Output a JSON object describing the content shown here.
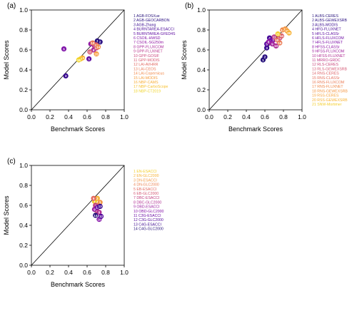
{
  "chart_data": [
    {
      "type": "scatter",
      "panel_label": "(a)",
      "xlabel": "Benchmark Scores",
      "ylabel": "Model Scores",
      "xlim": [
        0,
        1
      ],
      "ylim": [
        0,
        1
      ],
      "xticks": [
        "0.0",
        "0.2",
        "0.4",
        "0.6",
        "0.8",
        "1.0"
      ],
      "yticks": [
        "0.0",
        "0.2",
        "0.4",
        "0.6",
        "0.8",
        "1.0"
      ],
      "identity_line": true,
      "legend_placement": "right",
      "legend": [
        {
          "label": "1 AGB-FOSXue",
          "color": "#25107a"
        },
        {
          "label": "2 AGB-GEOCARBON",
          "color": "#2a0f82"
        },
        {
          "label": "3 AGB-Zhang",
          "color": "#37098f"
        },
        {
          "label": "4 BURNTAREA-ESACCI",
          "color": "#4b0a9a"
        },
        {
          "label": "5 BURNTAREA-GFED4S",
          "color": "#5c0aa0"
        },
        {
          "label": "6 CSOIL-HWSD",
          "color": "#7e10a8"
        },
        {
          "label": "7 CSOIL-SG250m",
          "color": "#9318a4"
        },
        {
          "label": "8 GPP-FLUXCOM",
          "color": "#a8289a"
        },
        {
          "label": "9 GPP-FLUXNET",
          "color": "#bb378c"
        },
        {
          "label": "10 GPP-GOSIF",
          "color": "#cb4a7f"
        },
        {
          "label": "11 GPP-MODIS",
          "color": "#d75a72"
        },
        {
          "label": "12 LAI-AVHRR",
          "color": "#e26a63"
        },
        {
          "label": "13 LAI-CEOS",
          "color": "#ea7957"
        },
        {
          "label": "14 LAI-Copernicus",
          "color": "#f1894b"
        },
        {
          "label": "15 LAI-MODIS",
          "color": "#f69c3e"
        },
        {
          "label": "16 NBP-CAMS",
          "color": "#f8ae35"
        },
        {
          "label": "17 NBP-CarboScope",
          "color": "#f7c02f"
        },
        {
          "label": "18 NBP-CT2019",
          "color": "#f0d52a"
        }
      ],
      "points": [
        {
          "n": "1",
          "x": 0.71,
          "y": 0.69,
          "color": "#25107a"
        },
        {
          "n": "2",
          "x": 0.74,
          "y": 0.68,
          "color": "#2a0f82"
        },
        {
          "n": "3",
          "x": 0.37,
          "y": 0.34,
          "color": "#37098f"
        },
        {
          "n": "4",
          "x": 0.68,
          "y": 0.66,
          "color": "#4b0a9a"
        },
        {
          "n": "5",
          "x": 0.62,
          "y": 0.51,
          "color": "#5c0aa0"
        },
        {
          "n": "6",
          "x": 0.35,
          "y": 0.61,
          "color": "#7e10a8"
        },
        {
          "n": "7",
          "x": 0.64,
          "y": 0.66,
          "color": "#9318a4"
        },
        {
          "n": "8",
          "x": 0.67,
          "y": 0.6,
          "color": "#a8289a"
        },
        {
          "n": "9",
          "x": 0.68,
          "y": 0.64,
          "color": "#bb378c"
        },
        {
          "n": "10",
          "x": 0.7,
          "y": 0.62,
          "color": "#cb4a7f"
        },
        {
          "n": "11",
          "x": 0.63,
          "y": 0.58,
          "color": "#d75a72"
        },
        {
          "n": "12",
          "x": 0.7,
          "y": 0.65,
          "color": "#e26a63"
        },
        {
          "n": "13",
          "x": 0.66,
          "y": 0.67,
          "color": "#ea7957"
        },
        {
          "n": "14",
          "x": 0.72,
          "y": 0.63,
          "color": "#f1894b"
        },
        {
          "n": "15",
          "x": 0.7,
          "y": 0.56,
          "color": "#f69c3e"
        },
        {
          "n": "16",
          "x": 0.55,
          "y": 0.52,
          "color": "#f8ae35"
        },
        {
          "n": "17",
          "x": 0.53,
          "y": 0.51,
          "color": "#f7c02f"
        },
        {
          "n": "18",
          "x": 0.51,
          "y": 0.5,
          "color": "#f0d52a"
        }
      ]
    },
    {
      "type": "scatter",
      "panel_label": "(b)",
      "xlabel": "Benchmark Scores",
      "ylabel": "Model Scores",
      "xlim": [
        0,
        1
      ],
      "ylim": [
        0,
        1
      ],
      "xticks": [
        "0.0",
        "0.2",
        "0.4",
        "0.6",
        "0.8",
        "1.0"
      ],
      "yticks": [
        "0.0",
        "0.2",
        "0.4",
        "0.6",
        "0.8",
        "1.0"
      ],
      "identity_line": true,
      "legend_placement": "right",
      "legend": [
        {
          "label": "1 ALBS-CERES",
          "color": "#25107a"
        },
        {
          "label": "2 ALBS-GEWEXSRB",
          "color": "#2a0f82"
        },
        {
          "label": "3 ALBS-MODIS",
          "color": "#37098f"
        },
        {
          "label": "4 HFG-FLUXNET",
          "color": "#470a97"
        },
        {
          "label": "5 HFLS-CLASSr",
          "color": "#5a0a9f"
        },
        {
          "label": "6 HFLS-FLUXCOM",
          "color": "#6c0ca5"
        },
        {
          "label": "7 HFLS-FLUXNET",
          "color": "#7e10a8"
        },
        {
          "label": "8 HFSS-CLASSr",
          "color": "#8f16a6"
        },
        {
          "label": "9 HFSS-FLUXCOM",
          "color": "#a0229e"
        },
        {
          "label": "10 HFSS-FLUXNET",
          "color": "#b02f93"
        },
        {
          "label": "11 MRRO-GRDC",
          "color": "#be3b88"
        },
        {
          "label": "12 RLS-CERES",
          "color": "#ca497e"
        },
        {
          "label": "13 RLS-GEWEXSRB",
          "color": "#d45774"
        },
        {
          "label": "14 RNS-CERES",
          "color": "#dd6369"
        },
        {
          "label": "15 RNS-CLASSr",
          "color": "#e46f5f"
        },
        {
          "label": "16 RNS-FLUXCOM",
          "color": "#eb7c55"
        },
        {
          "label": "17 RNS-FLUXNET",
          "color": "#f0894b"
        },
        {
          "label": "18 RNS-GEWEXSRB",
          "color": "#f49641"
        },
        {
          "label": "19 RSS-CERES",
          "color": "#f7a33a"
        },
        {
          "label": "20 RSS-GEWEXSRB",
          "color": "#f8b233"
        },
        {
          "label": "21 SNW-Mortimer",
          "color": "#f3cd2c"
        }
      ],
      "points": [
        {
          "n": "1",
          "x": 0.58,
          "y": 0.5,
          "color": "#25107a"
        },
        {
          "n": "2",
          "x": 0.6,
          "y": 0.53,
          "color": "#2a0f82"
        },
        {
          "n": "3",
          "x": 0.62,
          "y": 0.62,
          "color": "#37098f"
        },
        {
          "n": "4",
          "x": 0.65,
          "y": 0.72,
          "color": "#470a97"
        },
        {
          "n": "5",
          "x": 0.62,
          "y": 0.66,
          "color": "#5a0a9f"
        },
        {
          "n": "6",
          "x": 0.66,
          "y": 0.69,
          "color": "#6c0ca5"
        },
        {
          "n": "7",
          "x": 0.69,
          "y": 0.7,
          "color": "#7e10a8"
        },
        {
          "n": "8",
          "x": 0.64,
          "y": 0.68,
          "color": "#8f16a6"
        },
        {
          "n": "9",
          "x": 0.68,
          "y": 0.66,
          "color": "#a0229e"
        },
        {
          "n": "10",
          "x": 0.72,
          "y": 0.64,
          "color": "#b02f93"
        },
        {
          "n": "11",
          "x": 0.7,
          "y": 0.73,
          "color": "#be3b88"
        },
        {
          "n": "12",
          "x": 0.76,
          "y": 0.72,
          "color": "#ca497e"
        },
        {
          "n": "13",
          "x": 0.75,
          "y": 0.75,
          "color": "#d45774"
        },
        {
          "n": "14",
          "x": 0.78,
          "y": 0.74,
          "color": "#dd6369"
        },
        {
          "n": "15",
          "x": 0.73,
          "y": 0.7,
          "color": "#e46f5f"
        },
        {
          "n": "16",
          "x": 0.76,
          "y": 0.67,
          "color": "#eb7c55"
        },
        {
          "n": "17",
          "x": 0.79,
          "y": 0.8,
          "color": "#f0894b"
        },
        {
          "n": "18",
          "x": 0.82,
          "y": 0.81,
          "color": "#f49641"
        },
        {
          "n": "19",
          "x": 0.84,
          "y": 0.79,
          "color": "#f7a33a"
        },
        {
          "n": "20",
          "x": 0.86,
          "y": 0.77,
          "color": "#f8b233"
        },
        {
          "n": "21",
          "x": 0.74,
          "y": 0.76,
          "color": "#f3cd2c"
        }
      ]
    },
    {
      "type": "scatter",
      "panel_label": "(c)",
      "xlabel": "Benchmark Scores",
      "ylabel": "Model Scores",
      "xlim": [
        0,
        1
      ],
      "ylim": [
        0,
        1
      ],
      "xticks": [
        "0.0",
        "0.2",
        "0.4",
        "0.6",
        "0.8",
        "1.0"
      ],
      "yticks": [
        "0.0",
        "0.2",
        "0.4",
        "0.6",
        "0.8",
        "1.0"
      ],
      "identity_line": true,
      "legend_placement": "right",
      "legend": [
        {
          "label": "1 EN-ESACCI",
          "color": "#f3cd2c"
        },
        {
          "label": "2 EN-GLC2000",
          "color": "#f6b136"
        },
        {
          "label": "3 DN-ESACCI",
          "color": "#f29845"
        },
        {
          "label": "4 DN-GLC2000",
          "color": "#ec8150"
        },
        {
          "label": "5 EB-ESACCI",
          "color": "#e3695f"
        },
        {
          "label": "6 EB-GLC2000",
          "color": "#d45774"
        },
        {
          "label": "7 DBC-ESACCI",
          "color": "#c2407f"
        },
        {
          "label": "8 DBC-GLC2000",
          "color": "#b02f93"
        },
        {
          "label": "9 OBD-ESACCI",
          "color": "#9c1fa0"
        },
        {
          "label": "10 OBD-GLC2000",
          "color": "#8412a8"
        },
        {
          "label": "11 C3G-ESACCI",
          "color": "#6a0ca4"
        },
        {
          "label": "12 C3G-GLC2000",
          "color": "#530a9c"
        },
        {
          "label": "13 C4G-ESACCI",
          "color": "#3c0a90"
        },
        {
          "label": "14 C4G-GLC2000",
          "color": "#25107a"
        }
      ],
      "points": [
        {
          "n": "1",
          "x": 0.68,
          "y": 0.64,
          "color": "#f3cd2c"
        },
        {
          "n": "2",
          "x": 0.71,
          "y": 0.67,
          "color": "#f6b136"
        },
        {
          "n": "3",
          "x": 0.74,
          "y": 0.63,
          "color": "#f29845"
        },
        {
          "n": "4",
          "x": 0.72,
          "y": 0.6,
          "color": "#ec8150"
        },
        {
          "n": "5",
          "x": 0.67,
          "y": 0.67,
          "color": "#e3695f"
        },
        {
          "n": "6",
          "x": 0.7,
          "y": 0.55,
          "color": "#d45774"
        },
        {
          "n": "7",
          "x": 0.69,
          "y": 0.6,
          "color": "#c2407f"
        },
        {
          "n": "8",
          "x": 0.73,
          "y": 0.53,
          "color": "#b02f93"
        },
        {
          "n": "9",
          "x": 0.68,
          "y": 0.56,
          "color": "#9c1fa0"
        },
        {
          "n": "10",
          "x": 0.73,
          "y": 0.46,
          "color": "#8412a8"
        },
        {
          "n": "11",
          "x": 0.71,
          "y": 0.58,
          "color": "#6a0ca4"
        },
        {
          "n": "12",
          "x": 0.75,
          "y": 0.49,
          "color": "#530a9c"
        },
        {
          "n": "13",
          "x": 0.74,
          "y": 0.59,
          "color": "#3c0a90"
        },
        {
          "n": "14",
          "x": 0.69,
          "y": 0.5,
          "color": "#25107a"
        }
      ]
    }
  ]
}
